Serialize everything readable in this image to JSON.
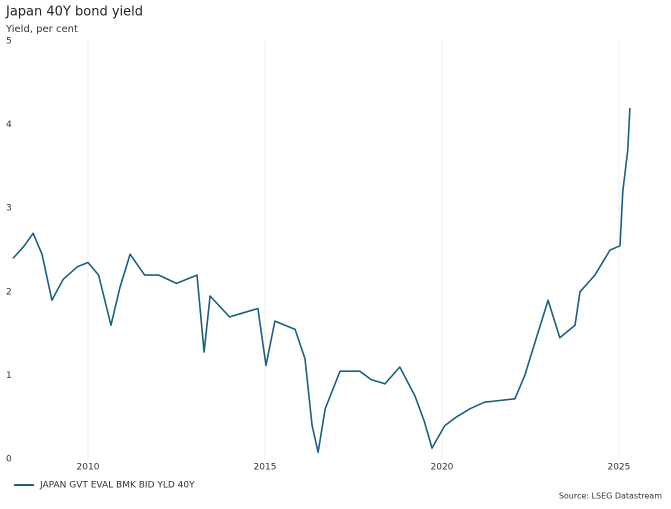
{
  "chart_data": {
    "type": "line",
    "title": "Japan 40Y bond yield",
    "subtitle": "Yield, per cent",
    "source": "Source: LSEG Datastream",
    "x": [
      2007.88,
      2008.2,
      2008.45,
      2008.7,
      2008.98,
      2009.3,
      2009.7,
      2010.0,
      2010.3,
      2010.65,
      2010.9,
      2011.19,
      2011.6,
      2012.0,
      2012.5,
      2013.08,
      2013.28,
      2013.45,
      2014.0,
      2014.4,
      2014.8,
      2015.03,
      2015.28,
      2015.85,
      2016.13,
      2016.33,
      2016.5,
      2016.7,
      2017.12,
      2017.68,
      2018.0,
      2018.39,
      2018.81,
      2019.24,
      2019.5,
      2019.72,
      2020.08,
      2020.4,
      2020.79,
      2021.2,
      2021.64,
      2022.06,
      2022.34,
      2022.63,
      2023.0,
      2023.33,
      2023.76,
      2023.9,
      2024.32,
      2024.75,
      2025.03,
      2025.11,
      2025.25,
      2025.31
    ],
    "series": [
      {
        "name": "JAPAN GVT EVAL BMK BID YLD 40Y",
        "color": "#1b5f80",
        "values": [
          2.4,
          2.55,
          2.7,
          2.45,
          1.9,
          2.15,
          2.3,
          2.35,
          2.2,
          1.6,
          2.05,
          2.45,
          2.2,
          2.2,
          2.1,
          2.2,
          1.28,
          1.95,
          1.7,
          1.75,
          1.8,
          1.12,
          1.65,
          1.55,
          1.2,
          0.4,
          0.08,
          0.6,
          1.05,
          1.05,
          0.95,
          0.9,
          1.1,
          0.75,
          0.45,
          0.13,
          0.4,
          0.5,
          0.6,
          0.68,
          0.7,
          0.72,
          1.0,
          1.4,
          1.9,
          1.45,
          1.6,
          2.0,
          2.2,
          2.5,
          2.55,
          3.2,
          3.7,
          4.2
        ]
      }
    ],
    "xlim": [
      2007.74,
      2026.16
    ],
    "xticks": [
      2010,
      2015,
      2020,
      2025
    ],
    "ylim": [
      0,
      5
    ],
    "yticks": [
      0,
      1,
      2,
      3,
      4,
      5
    ],
    "grid": true
  }
}
